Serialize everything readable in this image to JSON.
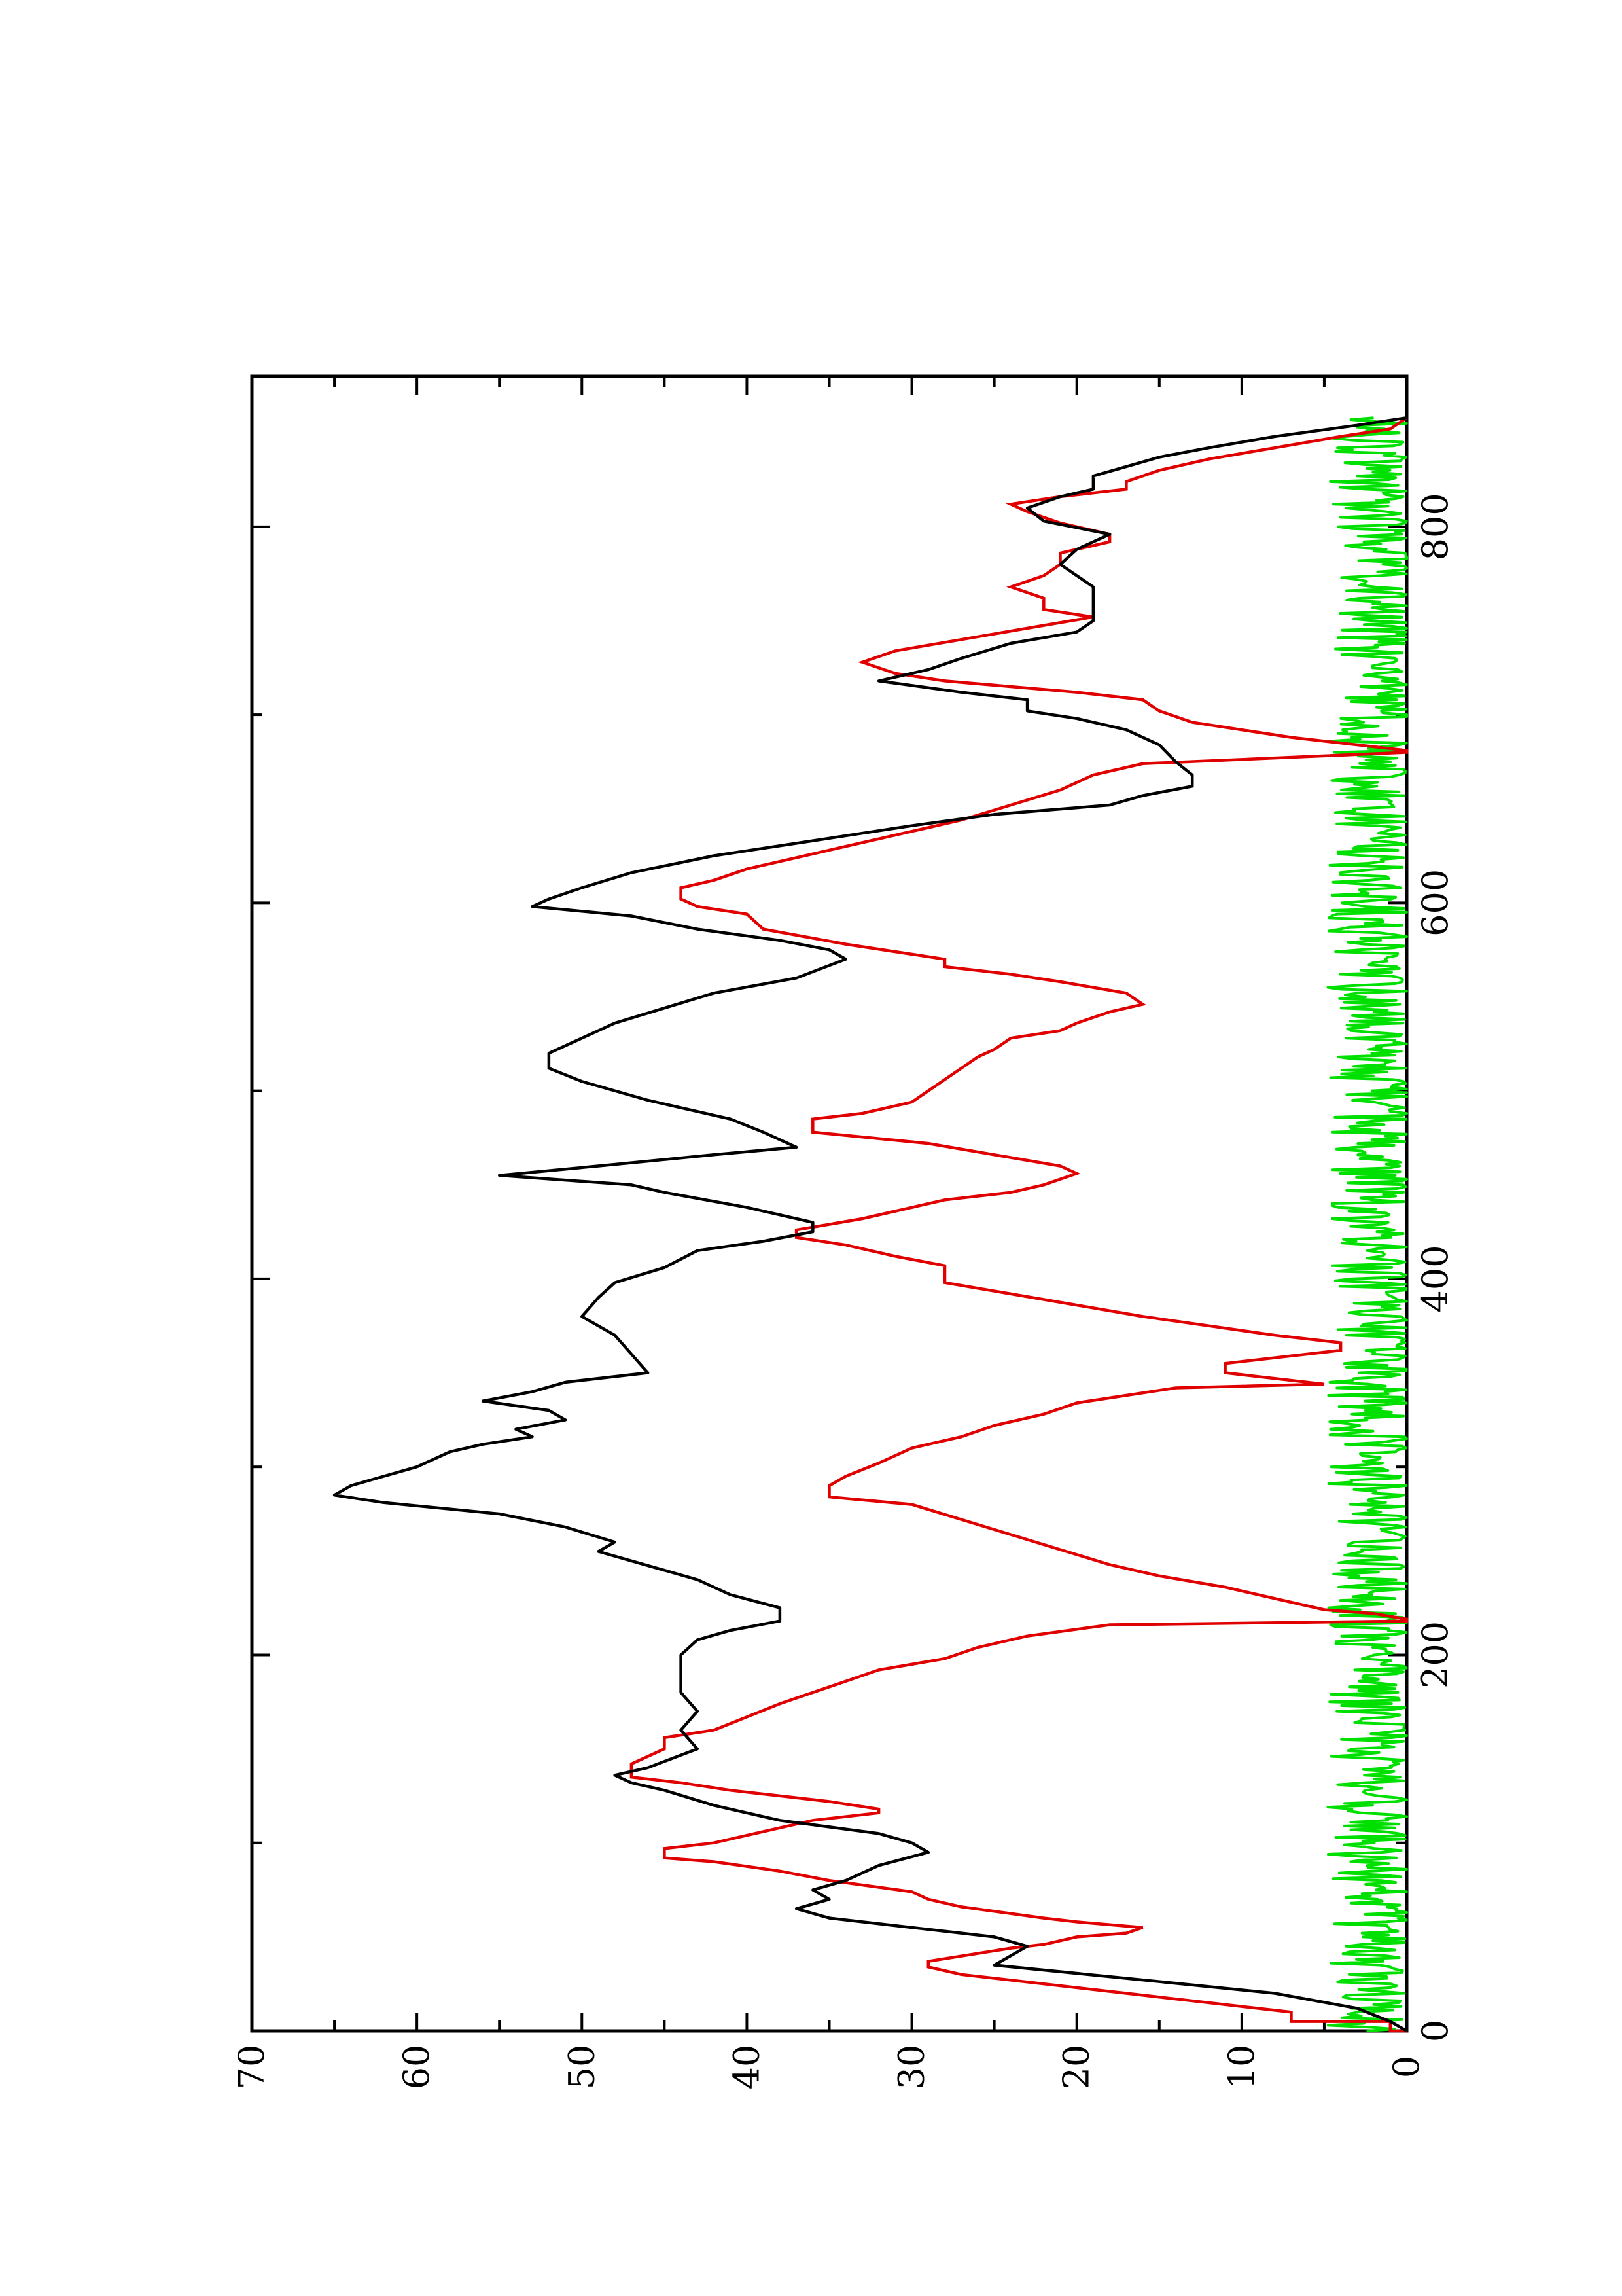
{
  "chart_data": {
    "type": "line",
    "orientation": "rotated-90-ccw",
    "title": "",
    "xlabel": "",
    "ylabel": "",
    "xlim": [
      0,
      880
    ],
    "ylim": [
      0,
      70
    ],
    "x_ticks": [
      0,
      200,
      400,
      600,
      800
    ],
    "y_ticks": [
      0,
      10,
      20,
      30,
      40,
      50,
      60,
      70
    ],
    "x_tick_labels": [
      "0",
      "200",
      "400",
      "600",
      "800"
    ],
    "y_tick_labels": [
      "0",
      "10",
      "20",
      "30",
      "40",
      "50",
      "60",
      "70"
    ],
    "grid": false,
    "legend": "none",
    "series": [
      {
        "color": "#000000",
        "style": "smooth",
        "points": [
          [
            0,
            0
          ],
          [
            5,
            1
          ],
          [
            12,
            3
          ],
          [
            20,
            8
          ],
          [
            28,
            17
          ],
          [
            35,
            25
          ],
          [
            40,
            24
          ],
          [
            45,
            23
          ],
          [
            50,
            25
          ],
          [
            55,
            30
          ],
          [
            60,
            35
          ],
          [
            65,
            37
          ],
          [
            70,
            35
          ],
          [
            75,
            36
          ],
          [
            80,
            34
          ],
          [
            88,
            32
          ],
          [
            95,
            29
          ],
          [
            100,
            30
          ],
          [
            105,
            32
          ],
          [
            112,
            38
          ],
          [
            120,
            42
          ],
          [
            128,
            45
          ],
          [
            132,
            47
          ],
          [
            136,
            48
          ],
          [
            140,
            46
          ],
          [
            150,
            43
          ],
          [
            160,
            44
          ],
          [
            170,
            43
          ],
          [
            180,
            44
          ],
          [
            190,
            44
          ],
          [
            200,
            44
          ],
          [
            208,
            43
          ],
          [
            213,
            41
          ],
          [
            218,
            38
          ],
          [
            225,
            38
          ],
          [
            232,
            41
          ],
          [
            240,
            43
          ],
          [
            250,
            47
          ],
          [
            255,
            49
          ],
          [
            260,
            48
          ],
          [
            268,
            51
          ],
          [
            275,
            55
          ],
          [
            281,
            62
          ],
          [
            285,
            65
          ],
          [
            290,
            64
          ],
          [
            295,
            62
          ],
          [
            300,
            60
          ],
          [
            308,
            58
          ],
          [
            312,
            56
          ],
          [
            316,
            53
          ],
          [
            320,
            54
          ],
          [
            325,
            51
          ],
          [
            330,
            52
          ],
          [
            335,
            56
          ],
          [
            340,
            53
          ],
          [
            345,
            51
          ],
          [
            350,
            46
          ],
          [
            360,
            47
          ],
          [
            370,
            48
          ],
          [
            380,
            50
          ],
          [
            390,
            49
          ],
          [
            398,
            48
          ],
          [
            406,
            45
          ],
          [
            415,
            43
          ],
          [
            420,
            39
          ],
          [
            425,
            36
          ],
          [
            430,
            36
          ],
          [
            438,
            40
          ],
          [
            446,
            45
          ],
          [
            450,
            47
          ],
          [
            455,
            55
          ],
          [
            460,
            49
          ],
          [
            466,
            42
          ],
          [
            470,
            37
          ],
          [
            478,
            39
          ],
          [
            485,
            41
          ],
          [
            495,
            46
          ],
          [
            505,
            50
          ],
          [
            512,
            52
          ],
          [
            520,
            52
          ],
          [
            528,
            50
          ],
          [
            536,
            48
          ],
          [
            544,
            45
          ],
          [
            552,
            42
          ],
          [
            560,
            37
          ],
          [
            570,
            34
          ],
          [
            575,
            35
          ],
          [
            580,
            38
          ],
          [
            586,
            43
          ],
          [
            593,
            47
          ],
          [
            598,
            53
          ],
          [
            602,
            52
          ],
          [
            608,
            50
          ],
          [
            616,
            47
          ],
          [
            625,
            42
          ],
          [
            633,
            36
          ],
          [
            641,
            30
          ],
          [
            647,
            25
          ],
          [
            652,
            18
          ],
          [
            657,
            16
          ],
          [
            662,
            13
          ],
          [
            668,
            13
          ],
          [
            675,
            14
          ],
          [
            684,
            15
          ],
          [
            692,
            17
          ],
          [
            698,
            20
          ],
          [
            702,
            23
          ],
          [
            708,
            23
          ],
          [
            712,
            27
          ],
          [
            718,
            32
          ],
          [
            724,
            29
          ],
          [
            730,
            27
          ],
          [
            738,
            24
          ],
          [
            744,
            20
          ],
          [
            750,
            19
          ],
          [
            756,
            19
          ],
          [
            762,
            19
          ],
          [
            768,
            19
          ],
          [
            774,
            20
          ],
          [
            780,
            21
          ],
          [
            788,
            20
          ],
          [
            796,
            18
          ],
          [
            803,
            22
          ],
          [
            810,
            23
          ],
          [
            816,
            21
          ],
          [
            820,
            19
          ],
          [
            827,
            19
          ],
          [
            832,
            17
          ],
          [
            837,
            15
          ],
          [
            842,
            12
          ],
          [
            848,
            8
          ],
          [
            854,
            3
          ],
          [
            858,
            0
          ]
        ]
      },
      {
        "color": "#e00000",
        "style": "step",
        "points": [
          [
            0,
            0
          ],
          [
            0,
            1
          ],
          [
            5,
            1
          ],
          [
            5,
            7
          ],
          [
            10,
            7
          ],
          [
            10,
            7
          ],
          [
            20,
            17
          ],
          [
            30,
            27
          ],
          [
            34,
            29
          ],
          [
            37,
            29
          ],
          [
            44,
            24
          ],
          [
            46,
            22
          ],
          [
            50,
            20
          ],
          [
            52,
            17
          ],
          [
            55,
            16
          ],
          [
            58,
            20
          ],
          [
            60,
            22
          ],
          [
            66,
            27
          ],
          [
            70,
            29
          ],
          [
            74,
            30
          ],
          [
            80,
            35
          ],
          [
            85,
            38
          ],
          [
            90,
            42
          ],
          [
            92,
            45
          ],
          [
            97,
            45
          ],
          [
            100,
            42
          ],
          [
            108,
            38
          ],
          [
            112,
            36
          ],
          [
            116,
            32
          ],
          [
            118,
            32
          ],
          [
            122,
            35
          ],
          [
            125,
            38
          ],
          [
            128,
            41
          ],
          [
            132,
            44
          ],
          [
            135,
            47
          ],
          [
            140,
            47
          ],
          [
            142,
            47
          ],
          [
            150,
            45
          ],
          [
            156,
            45
          ],
          [
            160,
            42
          ],
          [
            167,
            40
          ],
          [
            174,
            38
          ],
          [
            180,
            36
          ],
          [
            186,
            34
          ],
          [
            192,
            32
          ],
          [
            198,
            28
          ],
          [
            204,
            26
          ],
          [
            210,
            23
          ],
          [
            216,
            18
          ],
          [
            218,
            0
          ],
          [
            219,
            0
          ],
          [
            222,
            2
          ],
          [
            224,
            5
          ],
          [
            230,
            8
          ],
          [
            236,
            11
          ],
          [
            242,
            15
          ],
          [
            248,
            18
          ],
          [
            256,
            21
          ],
          [
            264,
            24
          ],
          [
            272,
            27
          ],
          [
            280,
            30
          ],
          [
            284,
            35
          ],
          [
            290,
            35
          ],
          [
            295,
            34
          ],
          [
            302,
            32
          ],
          [
            310,
            30
          ],
          [
            316,
            27
          ],
          [
            322,
            25
          ],
          [
            328,
            22
          ],
          [
            334,
            20
          ],
          [
            338,
            17
          ],
          [
            342,
            14
          ],
          [
            344,
            5
          ],
          [
            350,
            11
          ],
          [
            355,
            11
          ],
          [
            362,
            4
          ],
          [
            366,
            4
          ],
          [
            370,
            8
          ],
          [
            375,
            12
          ],
          [
            380,
            16
          ],
          [
            386,
            20
          ],
          [
            392,
            24
          ],
          [
            398,
            28
          ],
          [
            402,
            28
          ],
          [
            407,
            28
          ],
          [
            412,
            31
          ],
          [
            418,
            34
          ],
          [
            422,
            37
          ],
          [
            426,
            37
          ],
          [
            432,
            33
          ],
          [
            436,
            31
          ],
          [
            442,
            28
          ],
          [
            446,
            24
          ],
          [
            450,
            22
          ],
          [
            456,
            20
          ],
          [
            460,
            21
          ],
          [
            466,
            25
          ],
          [
            472,
            29
          ],
          [
            478,
            36
          ],
          [
            485,
            36
          ],
          [
            488,
            33
          ],
          [
            494,
            30
          ],
          [
            500,
            29
          ],
          [
            506,
            28
          ],
          [
            512,
            27
          ],
          [
            518,
            26
          ],
          [
            522,
            25
          ],
          [
            528,
            24
          ],
          [
            532,
            21
          ],
          [
            536,
            20
          ],
          [
            542,
            18
          ],
          [
            546,
            16
          ],
          [
            552,
            17
          ],
          [
            558,
            21
          ],
          [
            562,
            24
          ],
          [
            566,
            28
          ],
          [
            570,
            28
          ],
          [
            578,
            34
          ],
          [
            586,
            39
          ],
          [
            594,
            40
          ],
          [
            598,
            43
          ],
          [
            602,
            44
          ],
          [
            608,
            44
          ],
          [
            612,
            42
          ],
          [
            618,
            40
          ],
          [
            624,
            37
          ],
          [
            628,
            35
          ],
          [
            636,
            31
          ],
          [
            640,
            29
          ],
          [
            644,
            27
          ],
          [
            652,
            24
          ],
          [
            660,
            21
          ],
          [
            668,
            19
          ],
          [
            674,
            16
          ],
          [
            680,
            0
          ],
          [
            681,
            0
          ],
          [
            688,
            7
          ],
          [
            696,
            13
          ],
          [
            702,
            15
          ],
          [
            708,
            16
          ],
          [
            712,
            20
          ],
          [
            718,
            28
          ],
          [
            722,
            31
          ],
          [
            728,
            33
          ],
          [
            734,
            31
          ],
          [
            740,
            27
          ],
          [
            746,
            23
          ],
          [
            752,
            19
          ],
          [
            756,
            22
          ],
          [
            762,
            22
          ],
          [
            768,
            24
          ],
          [
            774,
            22
          ],
          [
            780,
            21
          ],
          [
            786,
            21
          ],
          [
            792,
            18
          ],
          [
            796,
            18
          ],
          [
            802,
            21
          ],
          [
            808,
            23
          ],
          [
            812,
            24
          ],
          [
            816,
            21
          ],
          [
            820,
            17
          ],
          [
            824,
            17
          ],
          [
            830,
            15
          ],
          [
            836,
            12
          ],
          [
            842,
            8
          ],
          [
            848,
            4
          ],
          [
            852,
            1
          ],
          [
            858,
            0
          ]
        ]
      },
      {
        "color": "#00e000",
        "style": "noise",
        "n_points": 859,
        "range": [
          0,
          4.8
        ],
        "note": "fluctuating series near zero"
      }
    ]
  }
}
